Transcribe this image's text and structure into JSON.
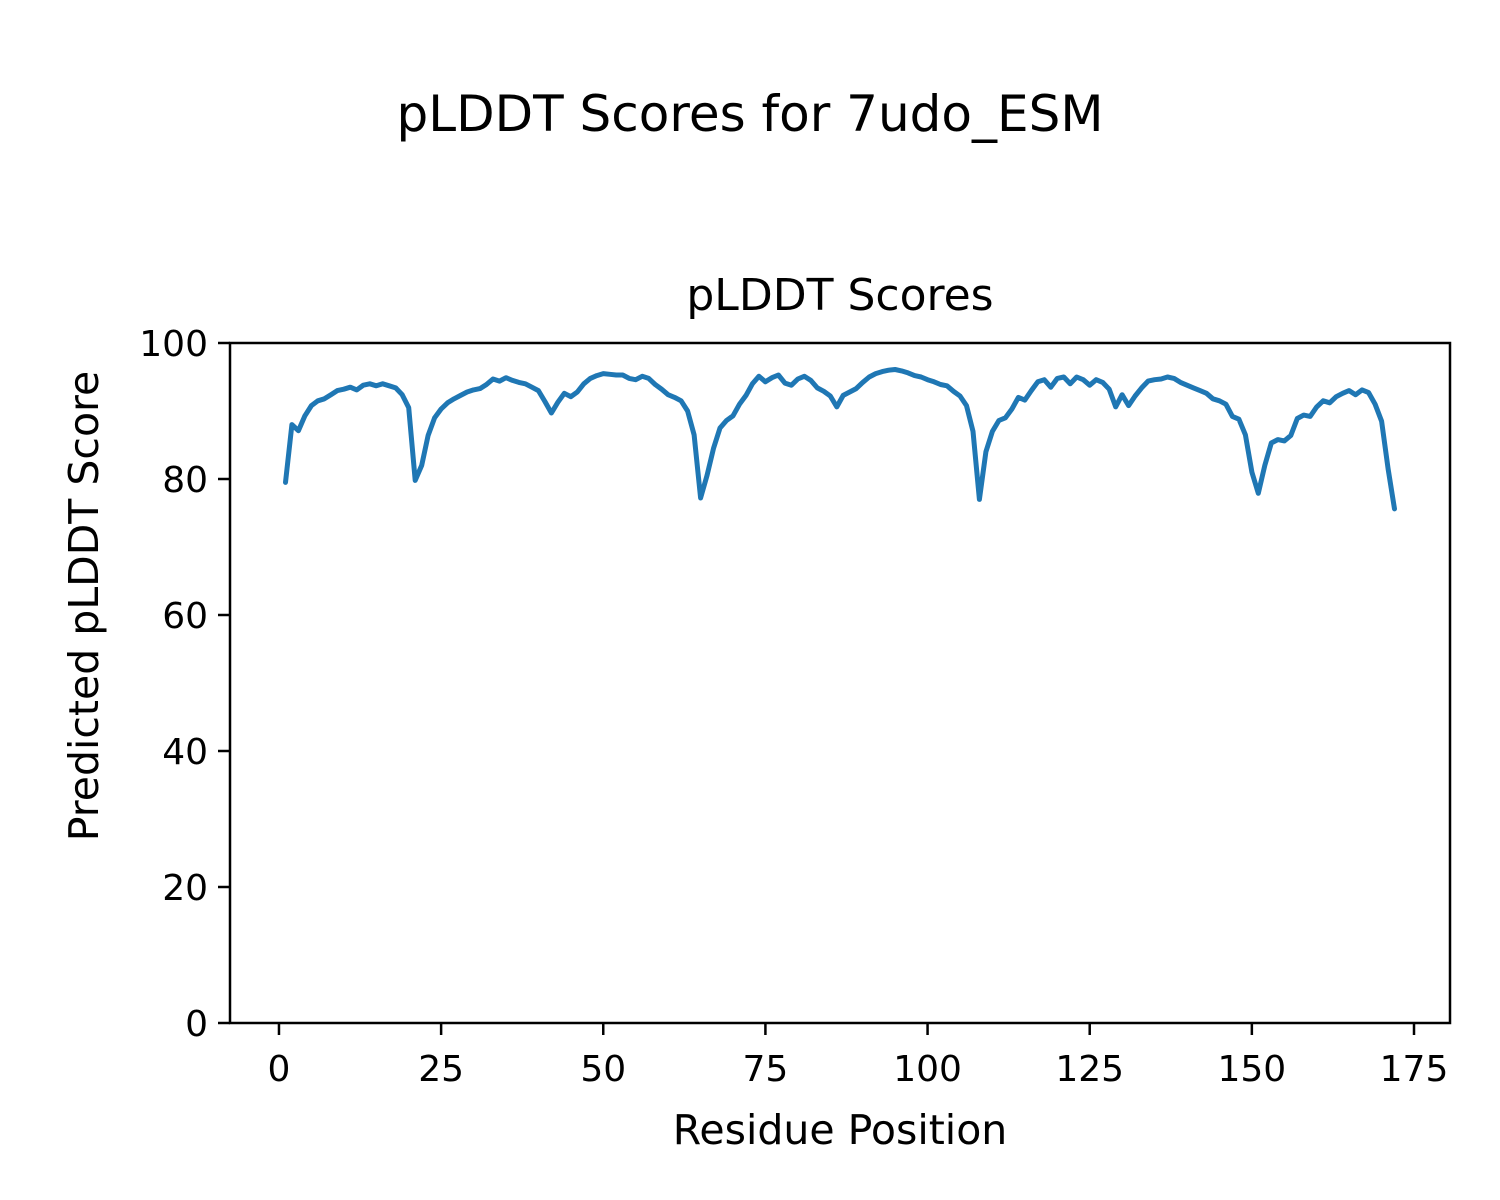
{
  "figure": {
    "suptitle": "pLDDT Scores for 7udo_ESM"
  },
  "chart_data": {
    "type": "line",
    "title": "pLDDT Scores",
    "xlabel": "Residue Position",
    "ylabel": "Predicted pLDDT Score",
    "legend": "none",
    "grid": false,
    "background": "#ffffff",
    "line_color": "#1f77b4",
    "line_width": 5,
    "frame_color": "#000000",
    "xlim": [
      -7.55,
      180.55
    ],
    "ylim": [
      0,
      100
    ],
    "xticks": [
      0,
      25,
      50,
      75,
      100,
      125,
      150,
      175
    ],
    "yticks": [
      0,
      20,
      40,
      60,
      80,
      100
    ],
    "x_start": 1,
    "x_step": 1,
    "values": [
      79.5,
      88.0,
      87.1,
      89.3,
      90.8,
      91.5,
      91.8,
      92.4,
      93.0,
      93.2,
      93.5,
      93.1,
      93.8,
      94.0,
      93.7,
      94.0,
      93.7,
      93.4,
      92.4,
      90.5,
      79.8,
      82.0,
      86.4,
      89.0,
      90.3,
      91.2,
      91.8,
      92.3,
      92.8,
      93.1,
      93.3,
      93.9,
      94.7,
      94.4,
      94.9,
      94.5,
      94.2,
      94.0,
      93.5,
      93.0,
      91.4,
      89.7,
      91.3,
      92.6,
      92.1,
      92.8,
      94.0,
      94.8,
      95.2,
      95.5,
      95.4,
      95.3,
      95.3,
      94.8,
      94.6,
      95.1,
      94.8,
      93.9,
      93.2,
      92.4,
      92.0,
      91.5,
      90.0,
      86.5,
      77.2,
      80.5,
      84.5,
      87.5,
      88.6,
      89.3,
      91.0,
      92.3,
      94.0,
      95.1,
      94.3,
      94.9,
      95.3,
      94.1,
      93.8,
      94.7,
      95.1,
      94.5,
      93.4,
      92.9,
      92.2,
      90.6,
      92.3,
      92.8,
      93.3,
      94.2,
      95.0,
      95.5,
      95.8,
      96.0,
      96.1,
      95.9,
      95.6,
      95.2,
      95.0,
      94.6,
      94.3,
      93.9,
      93.7,
      92.9,
      92.2,
      90.8,
      87.0,
      77.0,
      84.0,
      87.0,
      88.6,
      89.0,
      90.3,
      92.0,
      91.6,
      93.0,
      94.3,
      94.6,
      93.5,
      94.8,
      95.0,
      94.0,
      95.0,
      94.6,
      93.8,
      94.6,
      94.2,
      93.2,
      90.6,
      92.4,
      90.8,
      92.2,
      93.4,
      94.4,
      94.6,
      94.7,
      95.0,
      94.8,
      94.2,
      93.8,
      93.4,
      93.0,
      92.6,
      91.8,
      91.5,
      91.0,
      89.2,
      88.8,
      86.5,
      81.0,
      77.9,
      82.0,
      85.3,
      85.8,
      85.6,
      86.4,
      88.9,
      89.4,
      89.2,
      90.6,
      91.5,
      91.2,
      92.1,
      92.6,
      93.0,
      92.4,
      93.1,
      92.7,
      91.0,
      88.5,
      81.5,
      75.6
    ]
  }
}
